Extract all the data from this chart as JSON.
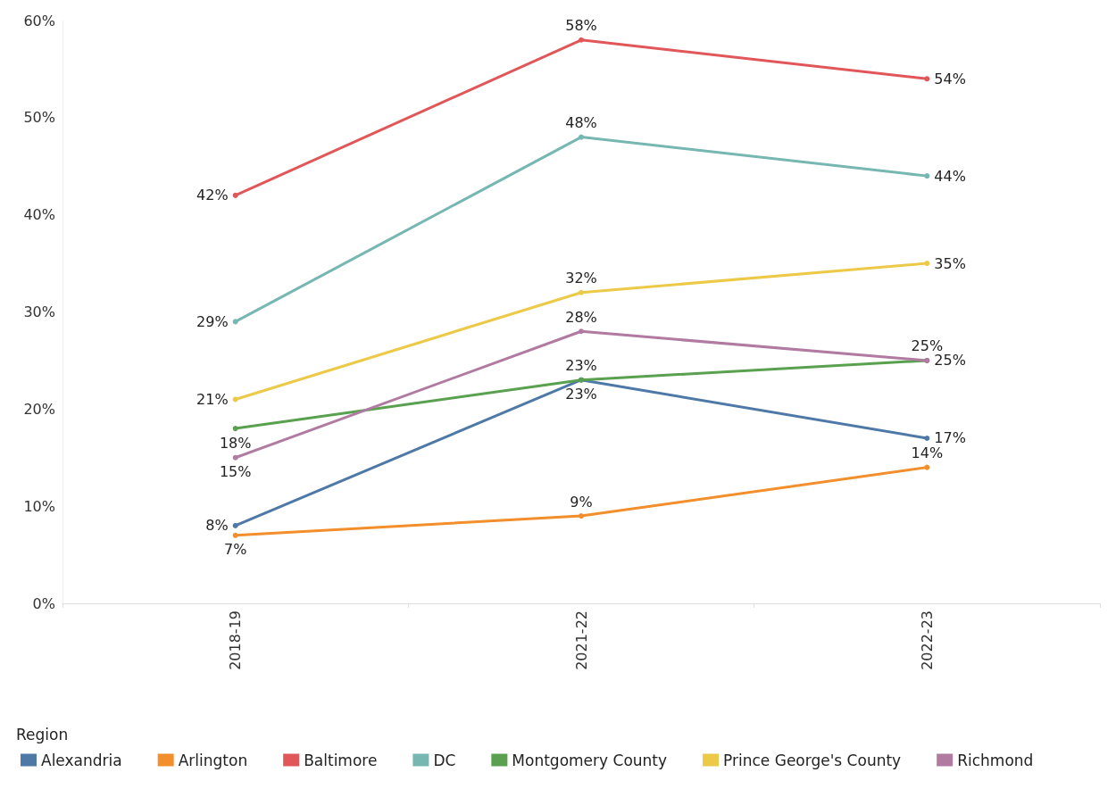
{
  "chart_data": {
    "type": "line",
    "categories": [
      "2018-19",
      "2021-22",
      "2022-23"
    ],
    "ylim": [
      0,
      60
    ],
    "yticks": [
      {
        "value": 0,
        "label": "0%"
      },
      {
        "value": 10,
        "label": "10%"
      },
      {
        "value": 20,
        "label": "20%"
      },
      {
        "value": 30,
        "label": "30%"
      },
      {
        "value": 40,
        "label": "40%"
      },
      {
        "value": 50,
        "label": "50%"
      },
      {
        "value": 60,
        "label": "60%"
      }
    ],
    "legend_title": "Region",
    "legend": "bottom",
    "grid": false,
    "marker": "circle",
    "line_style": "solid",
    "series": [
      {
        "name": "Alexandria",
        "color": "#4e79a7",
        "values": [
          8,
          23,
          17
        ],
        "value_labels": [
          "8%",
          "23%",
          "17%"
        ]
      },
      {
        "name": "Arlington",
        "color": "#f28e2b",
        "values": [
          7,
          9,
          14
        ],
        "value_labels": [
          "7%",
          "9%",
          "14%"
        ]
      },
      {
        "name": "Baltimore",
        "color": "#e15759",
        "values": [
          42,
          58,
          54
        ],
        "value_labels": [
          "42%",
          "58%",
          "54%"
        ]
      },
      {
        "name": "DC",
        "color": "#76b7b2",
        "values": [
          29,
          48,
          44
        ],
        "value_labels": [
          "29%",
          "48%",
          "44%"
        ]
      },
      {
        "name": "Montgomery County",
        "color": "#59a14f",
        "values": [
          18,
          23,
          25
        ],
        "value_labels": [
          "18%",
          "23%",
          "25%"
        ]
      },
      {
        "name": "Prince George's County",
        "color": "#edc948",
        "values": [
          21,
          32,
          35
        ],
        "value_labels": [
          "21%",
          "32%",
          "35%"
        ]
      },
      {
        "name": "Richmond",
        "color": "#b07aa1",
        "values": [
          15,
          28,
          25
        ],
        "value_labels": [
          "15%",
          "28%",
          "25%"
        ]
      }
    ]
  }
}
